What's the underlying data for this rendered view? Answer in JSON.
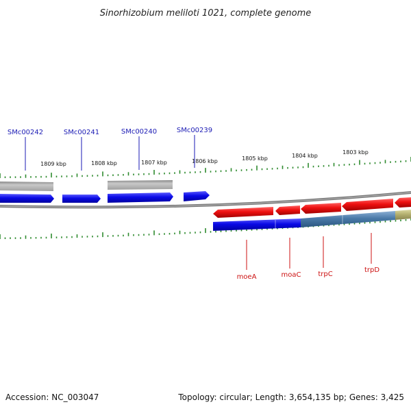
{
  "title": "Sinorhizobium meliloti 1021, complete genome",
  "accession": "Accession: NC_003047",
  "summary": "Topology: circular; Length: 3,654,135 bp; Genes: 3,425",
  "colors": {
    "background": "#ffffff",
    "backbone": "#888888",
    "ticks": "#2e8b2e",
    "top_label": "#1a1ab4",
    "bottom_label": "#cc1111",
    "gene_blue": "#0a0ae6",
    "gene_gray": "#b4b4b4",
    "gene_red": "#ee1111",
    "gene_steel": "#4a7aa8",
    "gene_olive": "#b4b070"
  },
  "scale_labels": [
    "1809 kbp",
    "1808 kbp",
    "1807 kbp",
    "1806 kbp",
    "1805 kbp",
    "1804 kbp",
    "1803 kbp"
  ],
  "top_gene_labels": [
    "SMc00242",
    "SMc00241",
    "SMc00240",
    "SMc00239"
  ],
  "bottom_gene_labels": [
    "moeA",
    "moaC",
    "trpC",
    "trpD"
  ]
}
